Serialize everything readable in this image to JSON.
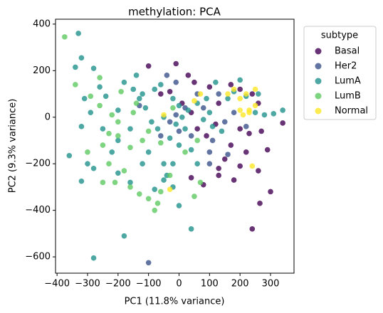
{
  "chart_data": {
    "type": "scatter",
    "title": "methylation: PCA",
    "x_label": "PC1 (11.8% variance)",
    "y_label": "PC2 (9.3% variance)",
    "legend_title": "subtype",
    "legend": "upper right outside",
    "xlim": [
      -405,
      377
    ],
    "ylim": [
      -670,
      421
    ],
    "xticks": [
      {
        "value": -400,
        "label": "−400"
      },
      {
        "value": -300,
        "label": "−300"
      },
      {
        "value": -200,
        "label": "−200"
      },
      {
        "value": -100,
        "label": "−100"
      },
      0,
      100,
      200,
      300
    ],
    "yticks": [
      {
        "value": -600,
        "label": "−600"
      },
      {
        "value": -400,
        "label": "−400"
      },
      {
        "value": -200,
        "label": "−200"
      },
      0,
      200,
      400
    ],
    "series": [
      {
        "name": "Basal",
        "color": "#440154",
        "x": [
          240,
          265,
          300,
          80,
          180,
          130,
          40,
          130,
          200,
          260,
          220,
          170,
          150,
          290,
          340,
          270,
          230,
          200,
          120,
          90,
          60,
          40,
          10,
          -60,
          -30,
          -10,
          30,
          50,
          100,
          170,
          200,
          240,
          130,
          -100,
          260
        ],
        "values": [
          -480,
          -370,
          -320,
          -290,
          -270,
          -250,
          -260,
          -220,
          -210,
          -230,
          -150,
          -120,
          -180,
          -140,
          -25,
          -60,
          -70,
          -50,
          -30,
          -80,
          -50,
          20,
          60,
          100,
          110,
          230,
          180,
          150,
          130,
          140,
          120,
          100,
          60,
          220,
          60
        ]
      },
      {
        "name": "Her2",
        "color": "#3b528b",
        "x": [
          -100,
          -30,
          -10,
          20,
          40,
          100,
          110,
          150,
          80,
          60,
          -40,
          -10,
          0,
          160,
          220,
          180,
          -130,
          -60,
          100,
          130
        ],
        "values": [
          -625,
          -20,
          10,
          40,
          -80,
          -150,
          -100,
          -20,
          40,
          100,
          180,
          150,
          -60,
          -160,
          -40,
          20,
          50,
          -80,
          -200,
          100
        ]
      },
      {
        "name": "LumA",
        "color": "#21918c",
        "x": [
          -330,
          -320,
          -340,
          -280,
          -260,
          -310,
          -290,
          -320,
          -360,
          -320,
          -300,
          -280,
          -200,
          -250,
          -180,
          -150,
          -130,
          -110,
          -90,
          -70,
          -100,
          -120,
          -50,
          -40,
          -20,
          0,
          40,
          -180,
          -280,
          -200,
          -160,
          -80,
          -50,
          -20,
          0,
          20,
          30,
          60,
          80,
          100,
          110,
          140,
          160,
          180,
          200,
          220,
          250,
          280,
          310,
          340,
          260,
          -140,
          -60,
          -20,
          0,
          -30,
          -200,
          -240,
          -220,
          -160,
          -50,
          90,
          120,
          40,
          60,
          -120,
          -80,
          10,
          -10
        ],
        "values": [
          360,
          255,
          215,
          210,
          130,
          80,
          20,
          -40,
          -165,
          -275,
          -200,
          -220,
          -100,
          -50,
          150,
          120,
          80,
          40,
          -20,
          -50,
          -150,
          -200,
          -200,
          -250,
          -300,
          -380,
          -480,
          -510,
          -605,
          -240,
          -280,
          -310,
          -270,
          -200,
          -120,
          -50,
          30,
          60,
          -10,
          20,
          -40,
          -60,
          80,
          110,
          160,
          90,
          20,
          10,
          15,
          30,
          100,
          180,
          140,
          80,
          50,
          -90,
          30,
          90,
          -150,
          -50,
          0,
          80,
          150,
          -140,
          -200,
          100,
          120,
          0,
          -30
        ]
      },
      {
        "name": "LumB",
        "color": "#5ec962",
        "x": [
          -375,
          -340,
          -290,
          -260,
          -250,
          -230,
          -200,
          -230,
          -180,
          -250,
          -210,
          -160,
          -130,
          -100,
          -60,
          -70,
          -80,
          70,
          50,
          -30,
          -190,
          -140,
          -100,
          -60,
          -200,
          -160,
          -300,
          -220,
          -150,
          -120,
          20,
          60,
          -20,
          -260
        ],
        "values": [
          345,
          140,
          90,
          50,
          -120,
          -70,
          -80,
          -200,
          -230,
          -280,
          -280,
          -300,
          -330,
          -350,
          -320,
          -370,
          -400,
          -280,
          -340,
          -250,
          110,
          60,
          -60,
          -110,
          -20,
          -130,
          -150,
          10,
          20,
          -100,
          -150,
          -100,
          40,
          170
        ]
      },
      {
        "name": "Normal",
        "color": "#fde725",
        "x": [
          -30,
          240,
          250,
          230,
          200,
          220,
          250,
          180,
          160,
          230,
          210,
          70,
          50,
          -50,
          200
        ],
        "values": [
          -310,
          -210,
          50,
          30,
          80,
          100,
          120,
          120,
          100,
          20,
          10,
          100,
          70,
          10,
          30
        ]
      }
    ]
  }
}
